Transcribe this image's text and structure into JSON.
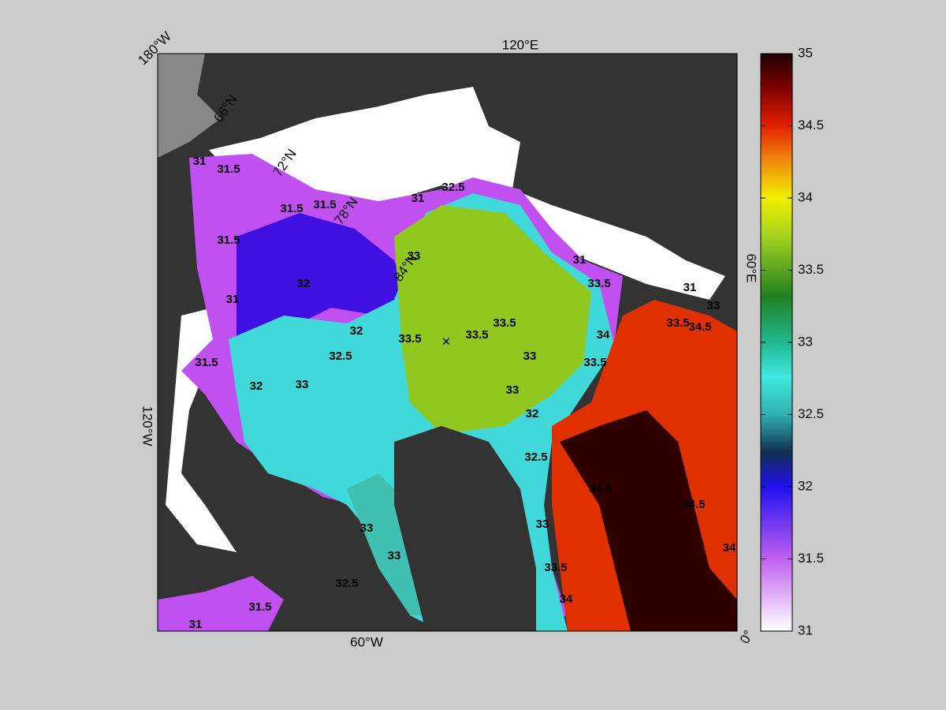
{
  "map": {
    "longitude_labels": [
      "180°W",
      "120°E",
      "60°E",
      "0°",
      "60°W",
      "120°W"
    ],
    "latitude_labels": [
      "66°N",
      "72°N",
      "78°N",
      "84°N"
    ],
    "contour_labels": [
      31,
      31.5,
      31.5,
      31.5,
      31,
      32.5,
      31.5,
      31,
      32,
      32,
      32.5,
      33,
      31.5,
      32,
      33.5,
      33,
      33.5,
      33.5,
      33,
      33,
      32,
      32.5,
      33.5,
      31,
      34,
      33.5,
      34.5,
      33.5,
      31,
      33,
      34.5,
      34.5,
      34,
      33,
      33,
      32.5,
      31.5,
      31,
      33,
      33.5,
      34
    ]
  },
  "colorbar": {
    "lim": [
      31,
      35
    ],
    "ticks": [
      31,
      31.5,
      32,
      32.5,
      33,
      33.5,
      34,
      34.5,
      35
    ]
  }
}
